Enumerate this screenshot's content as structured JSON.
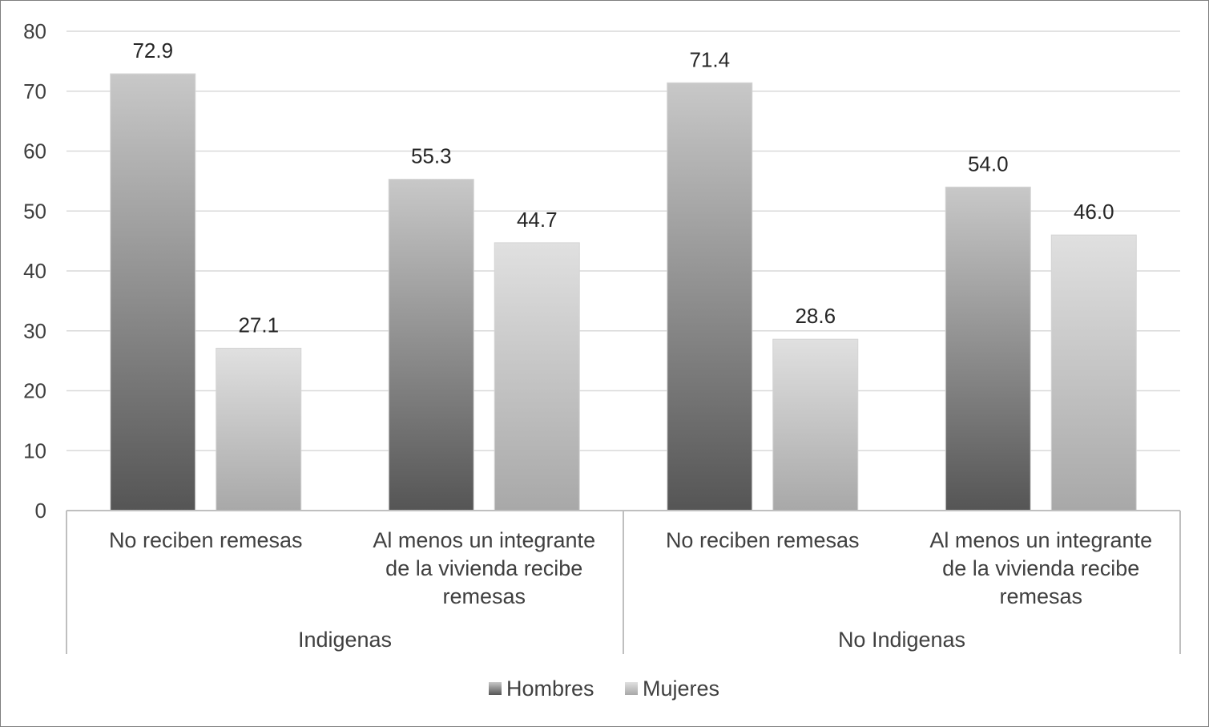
{
  "chart_data": {
    "type": "bar",
    "title": "",
    "xlabel": "",
    "ylabel": "",
    "ylim": [
      0,
      80
    ],
    "yticks": [
      0,
      10,
      20,
      30,
      40,
      50,
      60,
      70,
      80
    ],
    "grid": true,
    "legend_position": "bottom",
    "groups": [
      {
        "label": "Indigenas",
        "categories": [
          [
            "No reciben remesas"
          ],
          [
            "Al menos un integrante",
            "de la vivienda recibe",
            "remesas"
          ]
        ]
      },
      {
        "label": "No Indigenas",
        "categories": [
          [
            "No reciben remesas"
          ],
          [
            "Al menos un integrante",
            "de la vivienda recibe",
            "remesas"
          ]
        ]
      }
    ],
    "series": [
      {
        "name": "Hombres",
        "values": [
          72.9,
          55.3,
          71.4,
          54.0
        ],
        "labels": [
          "72.9",
          "55.3",
          "71.4",
          "54.0"
        ],
        "gradient": [
          "#c8c8c8",
          "#555555"
        ]
      },
      {
        "name": "Mujeres",
        "values": [
          27.1,
          44.7,
          28.6,
          46.0
        ],
        "labels": [
          "27.1",
          "44.7",
          "28.6",
          "46.0"
        ],
        "gradient": [
          "#e0e0e0",
          "#a8a8a8"
        ]
      }
    ],
    "colors": {
      "grid": "#d9d9d9",
      "axis": "#bfbfbf",
      "text": "#404040"
    }
  }
}
